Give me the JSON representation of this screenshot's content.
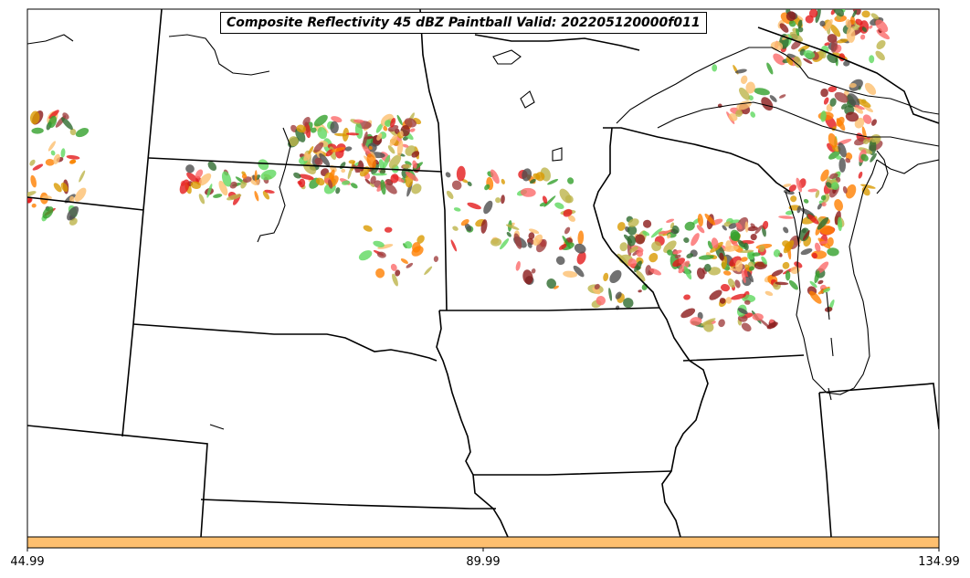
{
  "title": "Composite Reflectivity 45 dBZ Paintball Valid: 202205120000f011",
  "colorbar": {
    "color": "#fdbf6f",
    "ticks": [
      {
        "label": "44.99",
        "value": 44.99
      },
      {
        "label": "89.99",
        "value": 89.99
      },
      {
        "label": "134.99",
        "value": 134.99
      }
    ],
    "min": 44.99,
    "max": 134.99
  },
  "paintball_colors": [
    "#e31a1c",
    "#fb6a6a",
    "#ff7f00",
    "#fdbf6f",
    "#33a02c",
    "#5fd85f",
    "#8b1a1a",
    "#a04040",
    "#4d4d4d",
    "#bdb44a",
    "#d99a00",
    "#2e6b2e"
  ],
  "map": {
    "background": "#ffffff",
    "boundary_color": "#000000",
    "region": "Upper Midwest United States"
  }
}
